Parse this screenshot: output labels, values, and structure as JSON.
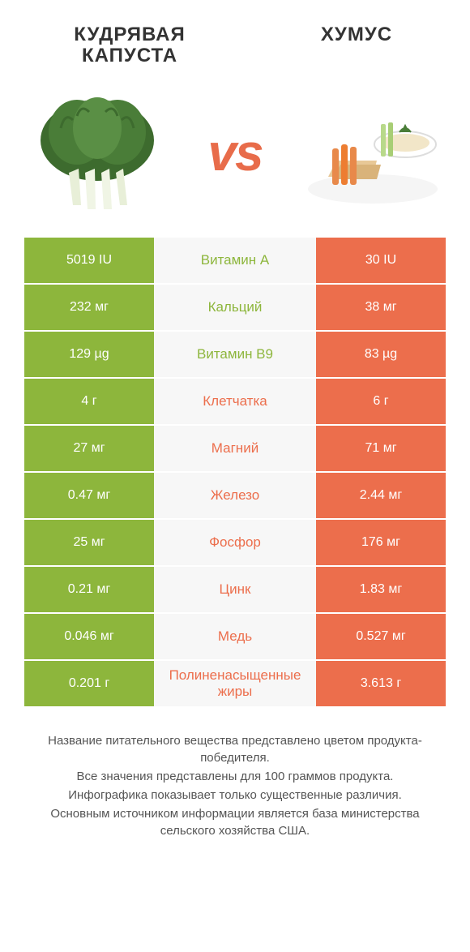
{
  "colors": {
    "left_bg": "#8db63c",
    "right_bg": "#ec6e4c",
    "mid_bg": "#f7f7f7",
    "left_text": "#8db63c",
    "right_text": "#ec6e4c",
    "vs": "#e86c4a"
  },
  "header": {
    "left_title": "КУДРЯВАЯ КАПУСТА",
    "right_title": "ХУМУС",
    "vs": "vs"
  },
  "rows": [
    {
      "left": "5019 IU",
      "mid": "Витамин A",
      "right": "30 IU",
      "winner": "left"
    },
    {
      "left": "232 мг",
      "mid": "Кальций",
      "right": "38 мг",
      "winner": "left"
    },
    {
      "left": "129 µg",
      "mid": "Витамин B9",
      "right": "83 µg",
      "winner": "left"
    },
    {
      "left": "4 г",
      "mid": "Клетчатка",
      "right": "6 г",
      "winner": "right"
    },
    {
      "left": "27 мг",
      "mid": "Магний",
      "right": "71 мг",
      "winner": "right"
    },
    {
      "left": "0.47 мг",
      "mid": "Железо",
      "right": "2.44 мг",
      "winner": "right"
    },
    {
      "left": "25 мг",
      "mid": "Фосфор",
      "right": "176 мг",
      "winner": "right"
    },
    {
      "left": "0.21 мг",
      "mid": "Цинк",
      "right": "1.83 мг",
      "winner": "right"
    },
    {
      "left": "0.046 мг",
      "mid": "Медь",
      "right": "0.527 мг",
      "winner": "right"
    },
    {
      "left": "0.201 г",
      "mid": "Полиненасыщенные жиры",
      "right": "3.613 г",
      "winner": "right"
    }
  ],
  "footnotes": [
    "Название питательного вещества представлено цветом продукта-победителя.",
    "Все значения представлены для 100 граммов продукта.",
    "Инфографика показывает только существенные различия.",
    "Основным источником информации является база министерства сельского хозяйства США."
  ]
}
